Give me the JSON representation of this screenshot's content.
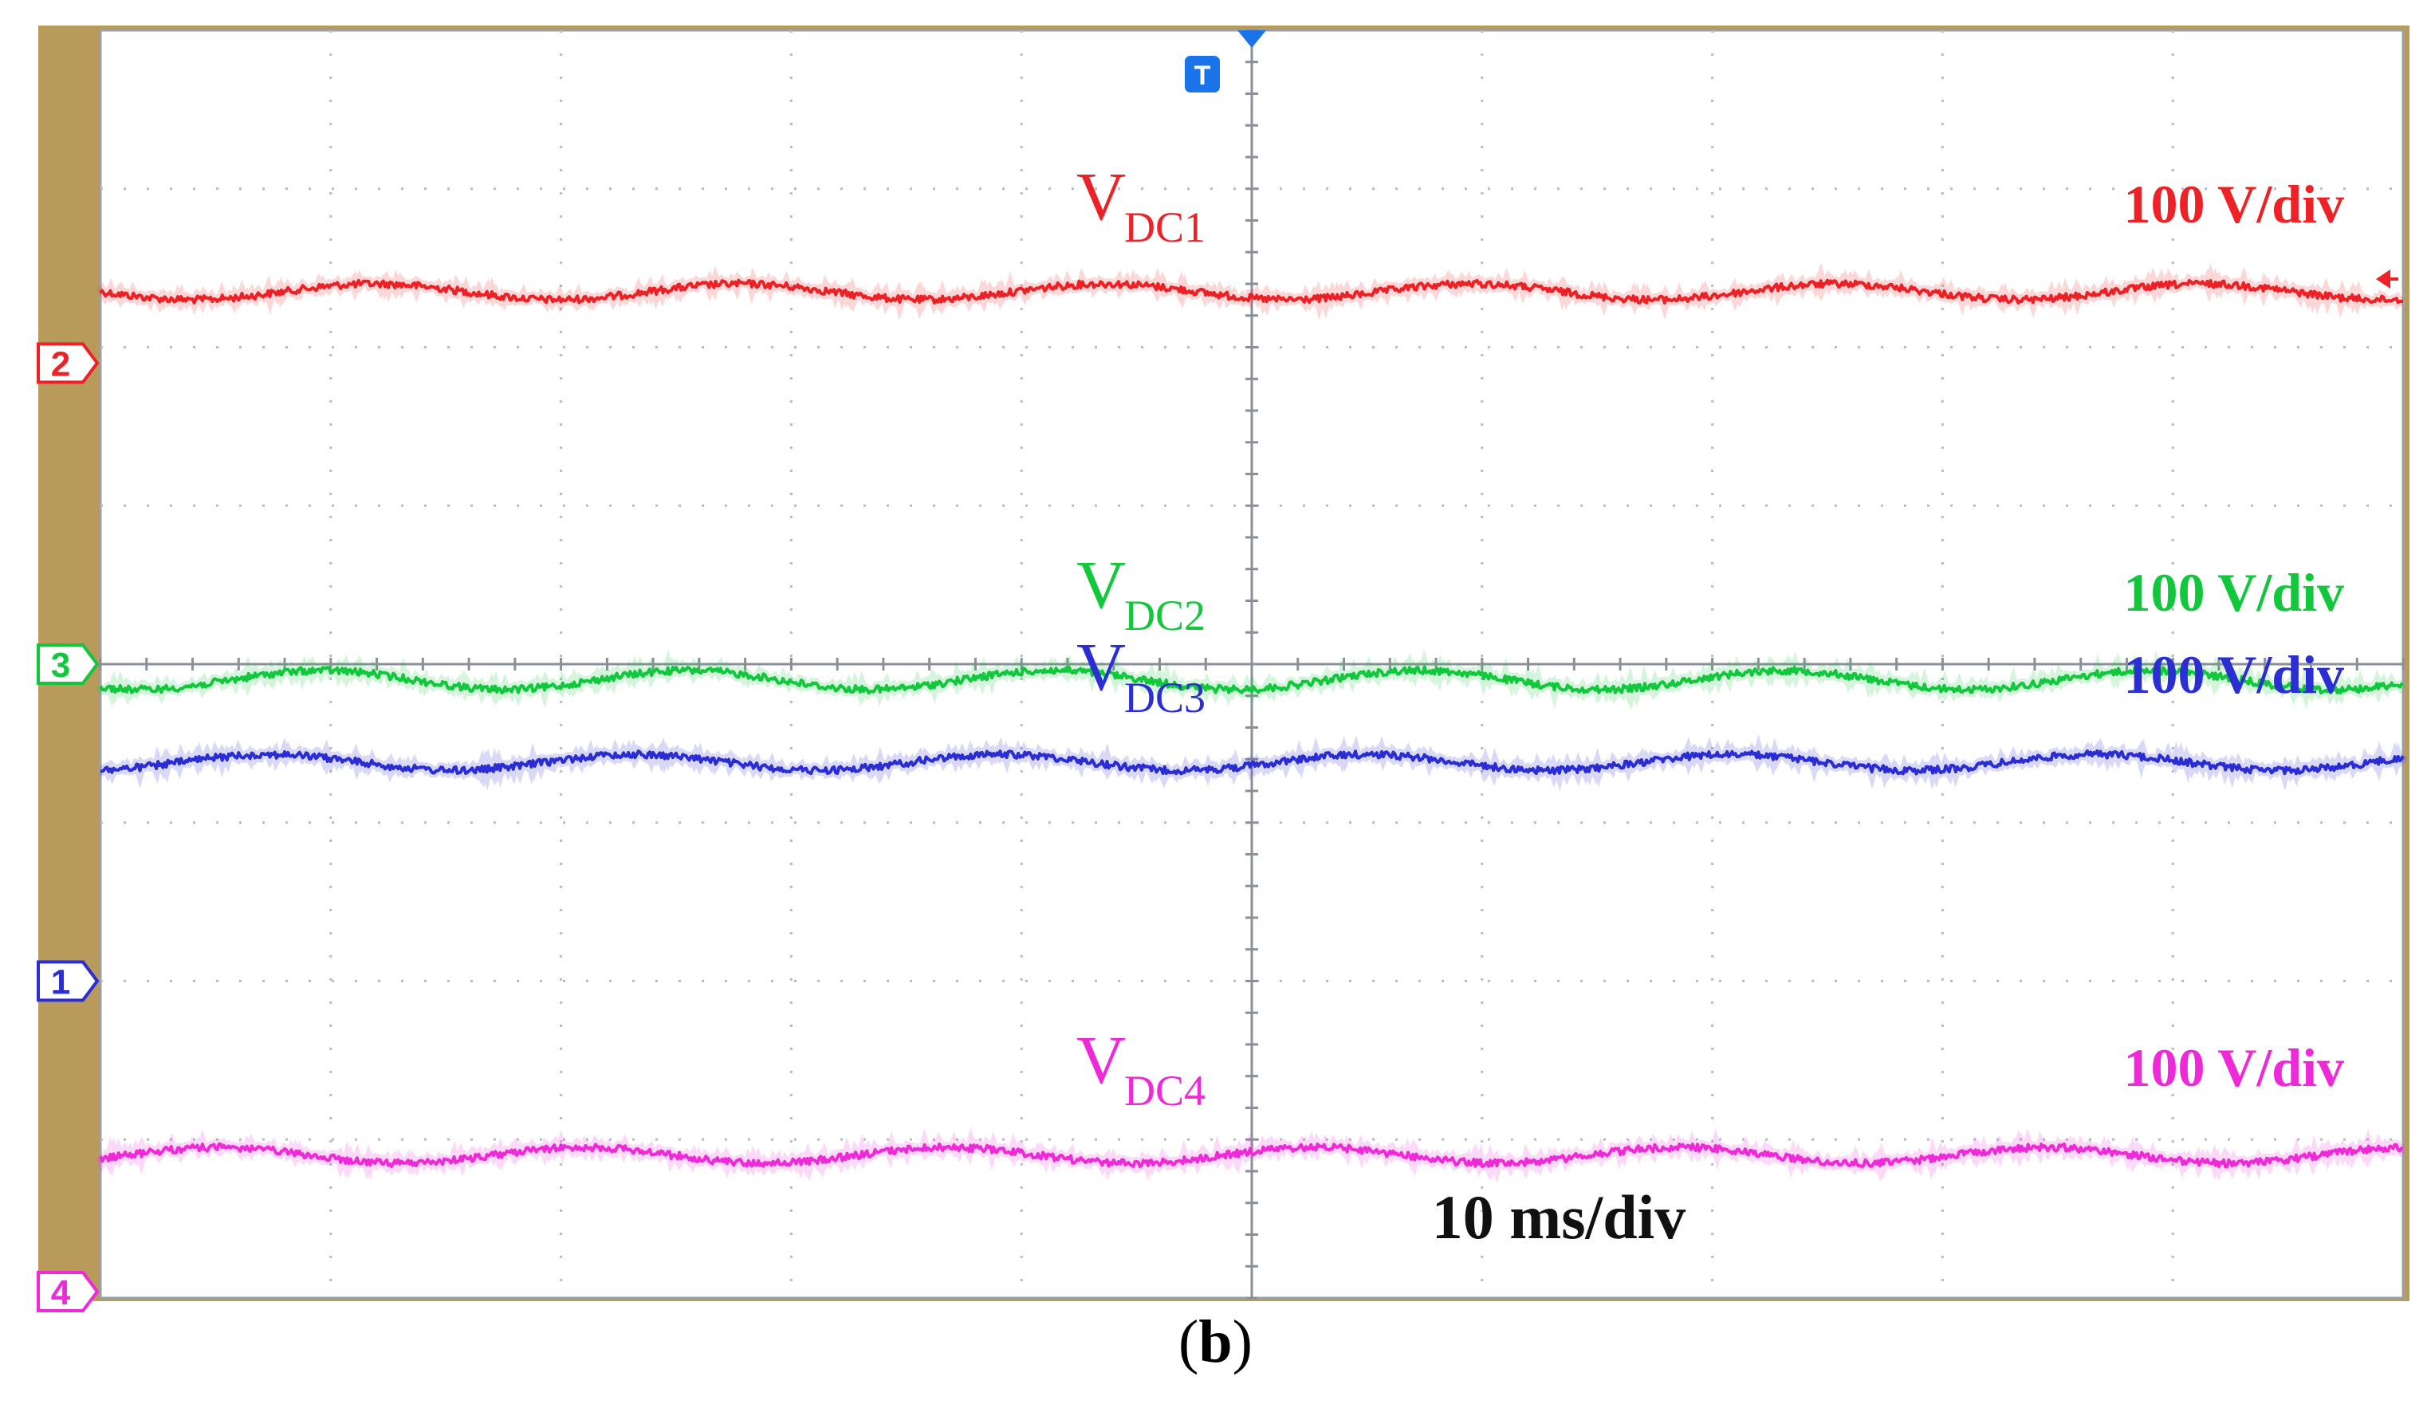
{
  "chart_data": {
    "type": "line",
    "title": "",
    "description_panel": "b",
    "grid": true,
    "x_divisions": 10,
    "y_divisions": 8,
    "timebase_label": "10 ms/div",
    "x": {
      "unit": "ms",
      "range": [
        0,
        100
      ]
    },
    "series": [
      {
        "name": "VDC1",
        "label_main": "V",
        "label_sub": "DC1",
        "scale_label": "100 V/div",
        "channel": "2",
        "color": "#ec2227",
        "level_div": 6.35,
        "ripple_div": 0.05,
        "ripple_cycles": 6.3,
        "channel_marker_div": 5.9
      },
      {
        "name": "VDC2",
        "label_main": "V",
        "label_sub": "DC2",
        "scale_label": "100 V/div",
        "channel": "3",
        "color": "#12c73b",
        "level_div": 3.9,
        "ripple_div": 0.06,
        "ripple_cycles": 6.3,
        "channel_marker_div": 4.0
      },
      {
        "name": "VDC3",
        "label_main": "V",
        "label_sub": "DC3",
        "scale_label": "100 V/div",
        "channel": "1",
        "color": "#2a2ed3",
        "level_div": 3.38,
        "ripple_div": 0.05,
        "ripple_cycles": 6.3,
        "channel_marker_div": 2.0
      },
      {
        "name": "VDC4",
        "label_main": "V",
        "label_sub": "DC4",
        "scale_label": "100 V/div",
        "channel": "4",
        "color": "#ee2ad8",
        "level_div": 0.9,
        "ripple_div": 0.05,
        "ripple_cycles": 6.3,
        "channel_marker_div": 0.04
      }
    ],
    "trigger_marker": "T",
    "caption_letter": "b"
  },
  "colors": {
    "frame_bg": "#b89a5a",
    "screen_bg": "#ffffff",
    "grid": "#9aa0aa",
    "trigger": "#1a73e8"
  }
}
